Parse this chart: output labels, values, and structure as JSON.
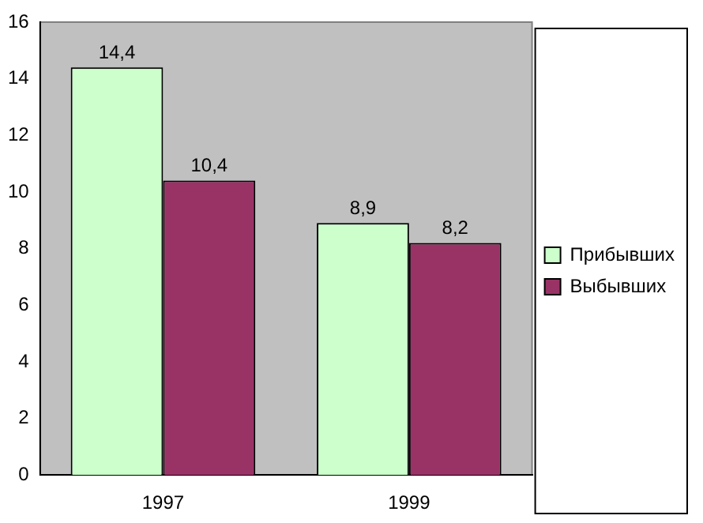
{
  "chart_data": {
    "type": "bar",
    "categories": [
      "1997",
      "1999"
    ],
    "series": [
      {
        "name": "Прибывших",
        "color": "#ccffcc",
        "values": [
          14.4,
          8.9
        ],
        "value_labels": [
          "14,4",
          "8,9"
        ]
      },
      {
        "name": "Выбывших",
        "color": "#993366",
        "values": [
          10.4,
          8.2
        ],
        "value_labels": [
          "10,4",
          "8,2"
        ]
      }
    ],
    "ylim": [
      0,
      16
    ],
    "yticks": [
      0,
      2,
      4,
      6,
      8,
      10,
      12,
      14,
      16
    ],
    "grid": false,
    "legend": "right"
  }
}
